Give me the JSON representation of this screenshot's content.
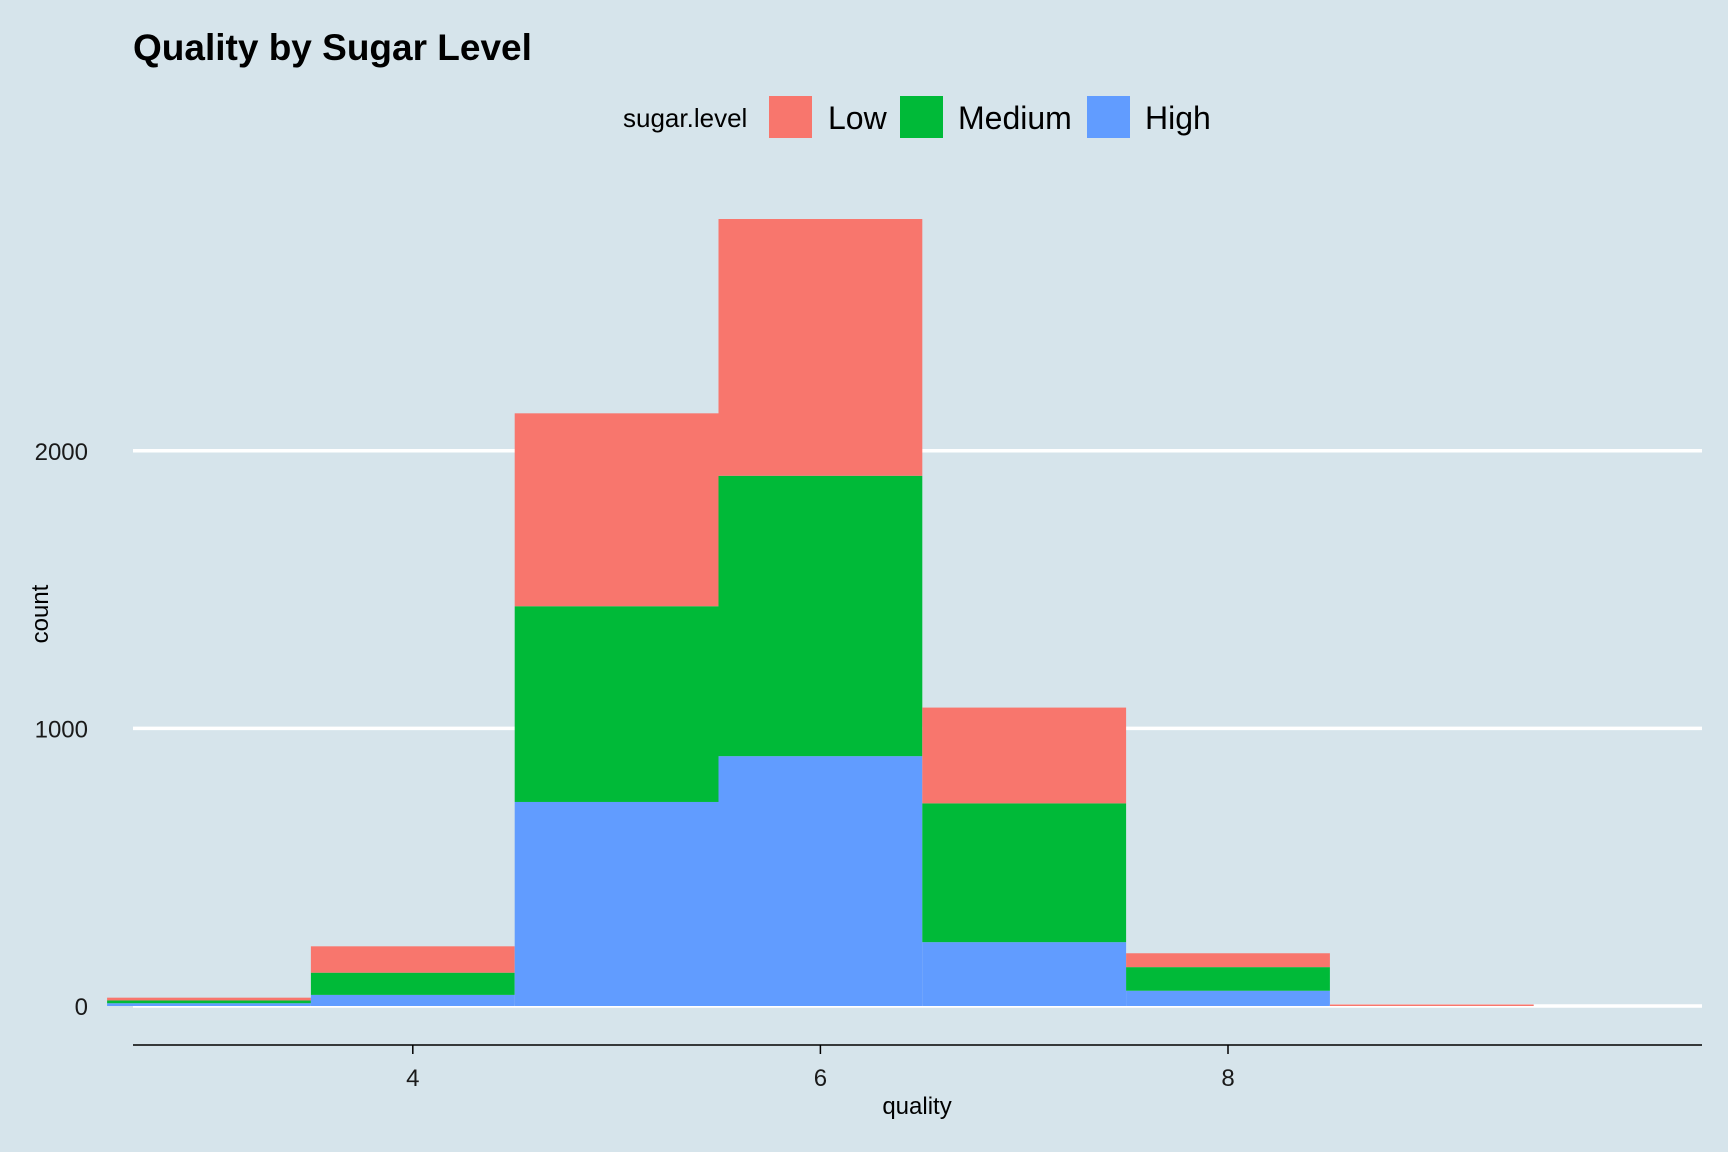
{
  "chart_data": {
    "type": "bar",
    "stacked": true,
    "title": "Quality by Sugar Level",
    "xlabel": "quality",
    "ylabel": "count",
    "legend": {
      "title": "sugar.level",
      "position": "top"
    },
    "categories": [
      3,
      4,
      5,
      6,
      7,
      8,
      9
    ],
    "series": [
      {
        "name": "High",
        "color": "#619cff",
        "values": [
          10,
          40,
          735,
          900,
          230,
          55,
          0
        ]
      },
      {
        "name": "Medium",
        "color": "#00ba38",
        "values": [
          10,
          80,
          705,
          1010,
          500,
          85,
          0
        ]
      },
      {
        "name": "Low",
        "color": "#f8766d",
        "values": [
          10,
          95,
          695,
          925,
          345,
          50,
          5
        ]
      }
    ],
    "legend_order": [
      "Low",
      "Medium",
      "High"
    ],
    "xlim": [
      2.5,
      9.5
    ],
    "ylim": [
      0,
      2830
    ],
    "x_ticks": [
      4,
      6,
      8
    ],
    "y_ticks": [
      0,
      1000,
      2000
    ],
    "grid": {
      "horizontal": true,
      "vertical": false
    }
  }
}
